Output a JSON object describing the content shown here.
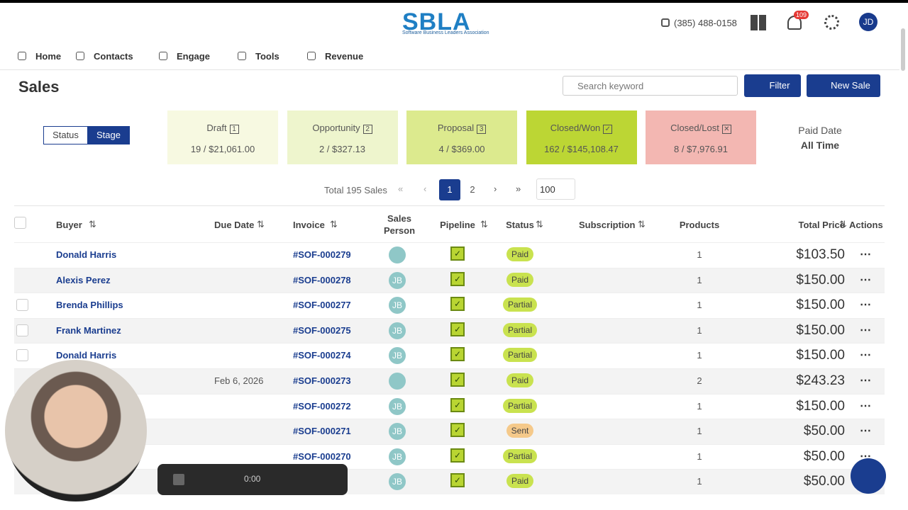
{
  "header": {
    "logo": "SBLA",
    "logo_sub": "Software Business Leaders Association",
    "phone": "(385) 488-0158",
    "notifications": "109",
    "avatar": "JD"
  },
  "nav": [
    "Home",
    "Contacts",
    "Engage",
    "Tools",
    "Revenue"
  ],
  "page": {
    "title": "Sales",
    "search_placeholder": "Search keyword",
    "filter": "Filter",
    "new_sale": "New Sale"
  },
  "toggle": [
    "Status",
    "Stage"
  ],
  "stages": [
    {
      "label": "Draft",
      "badge": "1",
      "summary": "19 / $21,061.00"
    },
    {
      "label": "Opportunity",
      "badge": "2",
      "summary": "2 / $327.13"
    },
    {
      "label": "Proposal",
      "badge": "3",
      "summary": "4 / $369.00"
    },
    {
      "label": "Closed/Won",
      "summary": "162 / $145,108.47"
    },
    {
      "label": "Closed/Lost",
      "summary": "8 / $7,976.91"
    }
  ],
  "paid_date": {
    "label": "Paid Date",
    "value": "All Time"
  },
  "pagination": {
    "total": "Total 195 Sales",
    "pages": [
      "1",
      "2"
    ],
    "page_size": "100"
  },
  "table": {
    "columns": [
      "Buyer",
      "Due Date",
      "Invoice",
      "Sales Person",
      "Pipeline",
      "Status",
      "Subscription",
      "Products",
      "Total Price",
      "Actions"
    ],
    "rows": [
      {
        "buyer": "Donald Harris",
        "invoice": "#SOF-000279",
        "status": "Paid",
        "products": 1,
        "total": "$103.50"
      },
      {
        "buyer": "Alexis Perez",
        "invoice": "#SOF-000278",
        "salesperson": "JB",
        "status": "Paid",
        "products": 1,
        "total": "$150.00"
      },
      {
        "buyer": "Brenda Phillips",
        "invoice": "#SOF-000277",
        "salesperson": "JB",
        "status": "Partial",
        "products": 1,
        "total": "$150.00"
      },
      {
        "buyer": "Frank Martinez",
        "invoice": "#SOF-000275",
        "salesperson": "JB",
        "status": "Partial",
        "products": 1,
        "total": "$150.00"
      },
      {
        "buyer": "Donald Harris",
        "invoice": "#SOF-000274",
        "salesperson": "JB",
        "status": "Partial",
        "products": 1,
        "total": "$150.00"
      },
      {
        "due_date": "Feb 6, 2026",
        "invoice": "#SOF-000273",
        "status": "Paid",
        "products": 2,
        "total": "$243.23"
      },
      {
        "invoice": "#SOF-000272",
        "salesperson": "JB",
        "status": "Partial",
        "products": 1,
        "total": "$150.00"
      },
      {
        "invoice": "#SOF-000271",
        "salesperson": "JB",
        "status": "Sent",
        "products": 1,
        "total": "$50.00"
      },
      {
        "invoice": "#SOF-000270",
        "salesperson": "JB",
        "status": "Partial",
        "products": 1,
        "total": "$50.00"
      },
      {
        "salesperson": "JB",
        "status": "Paid",
        "products": 1,
        "total": "$50.00"
      }
    ]
  },
  "recorder": {
    "time": "0:00"
  }
}
